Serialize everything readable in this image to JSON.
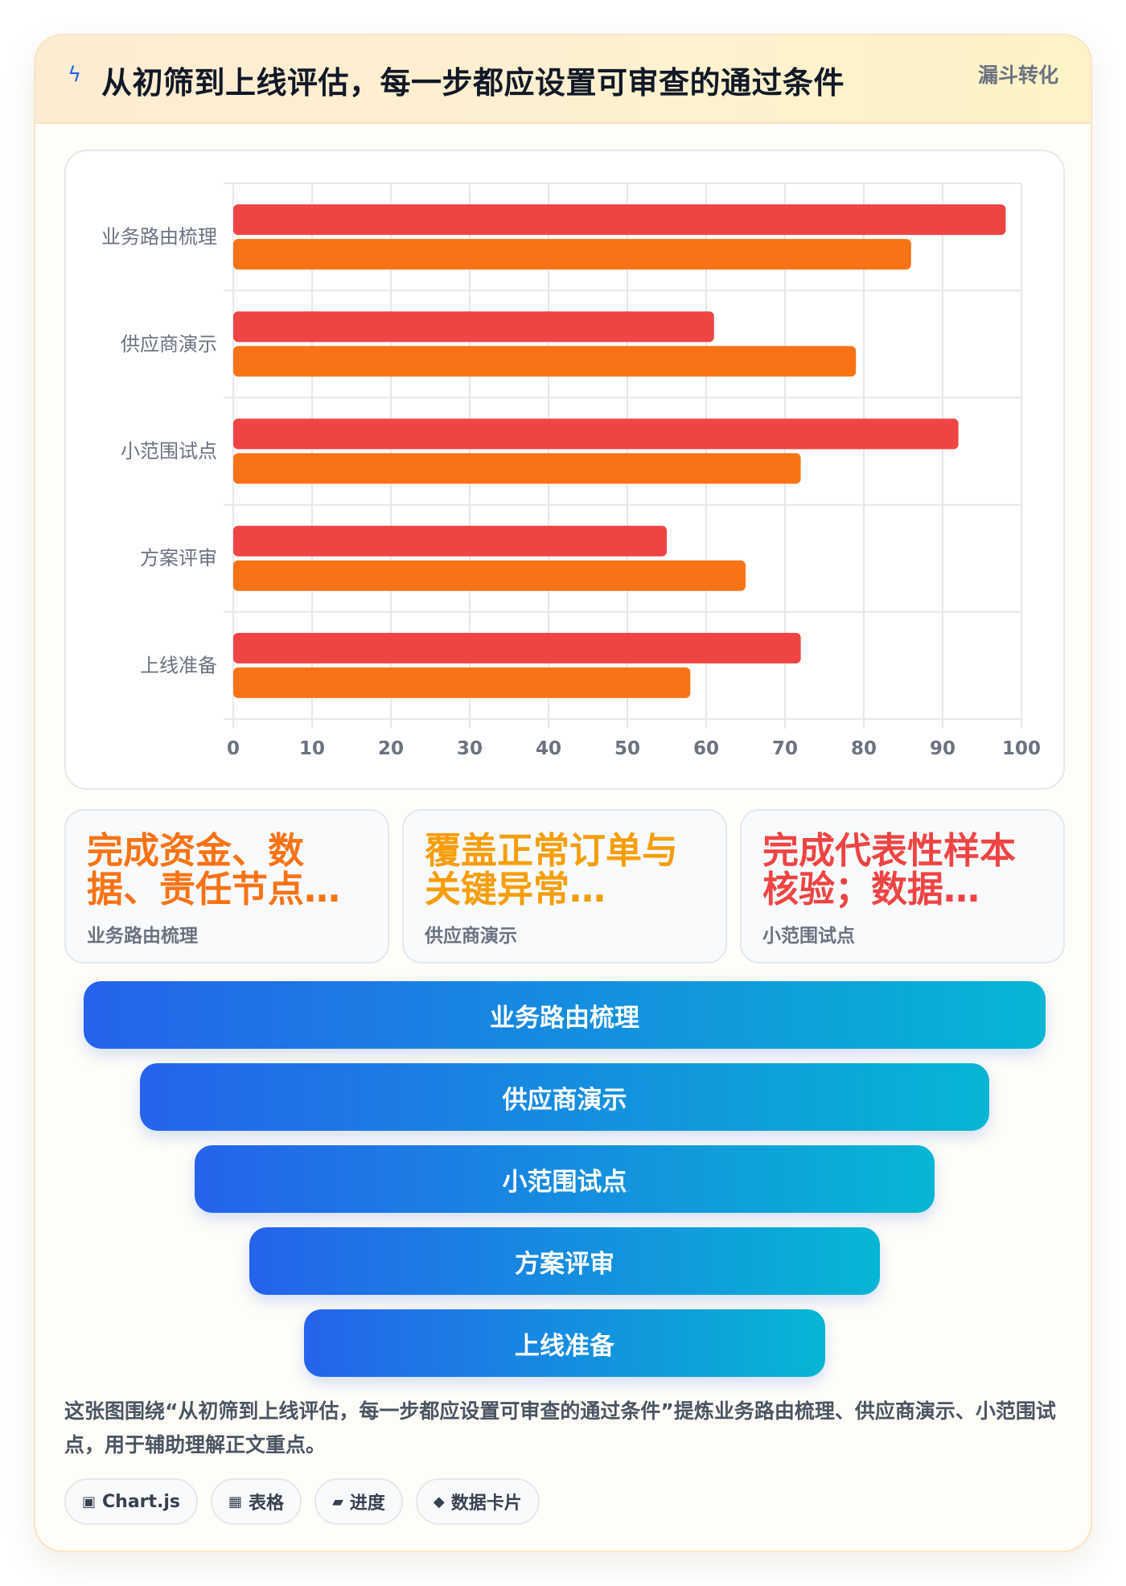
{
  "header": {
    "icon": "lightning-icon",
    "title": "从初筛到上线评估，每一步都应设置可审查的通过条件",
    "tag": "漏斗转化"
  },
  "chart_data": {
    "type": "bar",
    "orientation": "horizontal",
    "categories": [
      "业务路由梳理",
      "供应商演示",
      "小范围试点",
      "方案评审",
      "上线准备"
    ],
    "series": [
      {
        "color": "#ef4444",
        "values": [
          98,
          61,
          92,
          55,
          72
        ]
      },
      {
        "color": "#f97316",
        "values": [
          86,
          79,
          72,
          65,
          58
        ]
      }
    ],
    "xlim": [
      0,
      100
    ],
    "xticks": [
      "0",
      "10",
      "20",
      "30",
      "40",
      "50",
      "60",
      "70",
      "80",
      "90",
      "100"
    ],
    "grid": true
  },
  "kpis": [
    {
      "value": "完成资金、数据、责任节点…",
      "label": "业务路由梳理",
      "color": "#f97316"
    },
    {
      "value": "覆盖正常订单与关键异常…",
      "label": "供应商演示",
      "color": "#f59e0b"
    },
    {
      "value": "完成代表性样本核验；数据…",
      "label": "小范围试点",
      "color": "#ef4444"
    }
  ],
  "funnel": [
    "业务路由梳理",
    "供应商演示",
    "小范围试点",
    "方案评审",
    "上线准备"
  ],
  "description": "这张图围绕“从初筛到上线评估，每一步都应设置可审查的通过条件”提炼业务路由梳理、供应商演示、小范围试点，用于辅助理解正文重点。",
  "chips": [
    {
      "icon": "chart-icon",
      "glyph": "▣",
      "label": "Chart.js"
    },
    {
      "icon": "table-icon",
      "glyph": "▦",
      "label": "表格"
    },
    {
      "icon": "progress-icon",
      "glyph": "▰",
      "label": "进度"
    },
    {
      "icon": "diamond-icon",
      "glyph": "◆",
      "label": "数据卡片"
    }
  ]
}
